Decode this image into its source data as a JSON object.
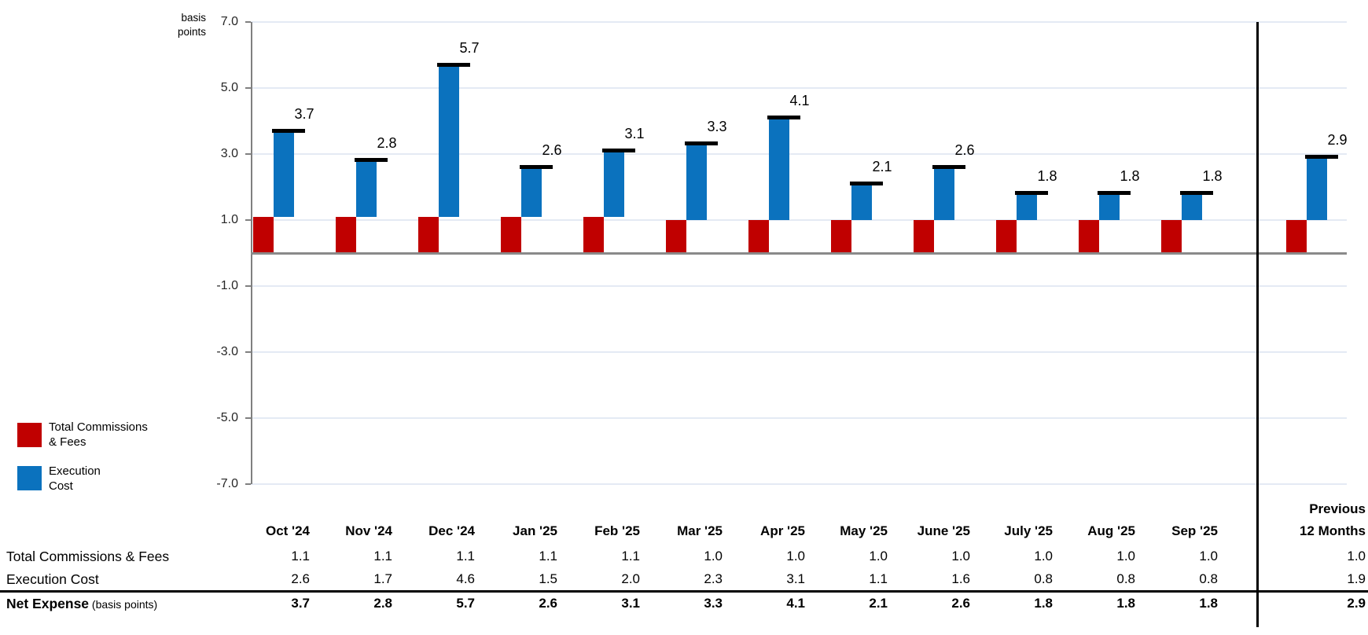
{
  "axis": {
    "unit_label_line1": "basis",
    "unit_label_line2": "points",
    "tick_labels": [
      "7.0",
      "5.0",
      "3.0",
      "1.0",
      "-1.0",
      "-3.0",
      "-5.0",
      "-7.0"
    ],
    "tick_values": [
      7,
      5,
      3,
      1,
      -1,
      -3,
      -5,
      -7
    ]
  },
  "legend": {
    "items": [
      {
        "label_line1": "Total Commissions",
        "label_line2": "& Fees",
        "color": "#c00000"
      },
      {
        "label_line1": "Execution",
        "label_line2": "Cost",
        "color": "#0b72be"
      }
    ]
  },
  "chart_data": {
    "type": "bar",
    "subtype": "stacked-columns-with-net-total-markers",
    "title": "",
    "ylabel": "basis points",
    "xlabel": "",
    "ylim": [
      -7.0,
      7.0
    ],
    "ytick_interval": 2.0,
    "grid": true,
    "legend_position": "left",
    "categories": [
      "Oct '24",
      "Nov '24",
      "Dec '24",
      "Jan '25",
      "Feb '25",
      "Mar '25",
      "Apr '25",
      "May '25",
      "June '25",
      "July '25",
      "Aug '25",
      "Sep '25",
      "Previous 12 Months"
    ],
    "series": [
      {
        "name": "Total Commissions & Fees",
        "color": "#c00000",
        "values": [
          1.1,
          1.1,
          1.1,
          1.1,
          1.1,
          1.0,
          1.0,
          1.0,
          1.0,
          1.0,
          1.0,
          1.0,
          1.0
        ]
      },
      {
        "name": "Execution Cost",
        "color": "#0b72be",
        "values": [
          2.6,
          1.7,
          4.6,
          1.5,
          2.0,
          2.3,
          3.1,
          1.1,
          1.6,
          0.8,
          0.8,
          0.8,
          1.9
        ]
      }
    ],
    "net_markers": {
      "name": "Net Expense",
      "values": [
        3.7,
        2.8,
        5.7,
        2.6,
        3.1,
        3.3,
        4.1,
        2.1,
        2.6,
        1.8,
        1.8,
        1.8,
        2.9
      ]
    },
    "bar_labels": [
      "3.7",
      "2.8",
      "5.7",
      "2.6",
      "3.1",
      "3.3",
      "4.1",
      "2.1",
      "2.6",
      "1.8",
      "1.8",
      "1.8",
      "2.9"
    ]
  },
  "table": {
    "month_headers": [
      "Oct '24",
      "Nov '24",
      "Dec '24",
      "Jan '25",
      "Feb '25",
      "Mar '25",
      "Apr '25",
      "May '25",
      "June '25",
      "July '25",
      "Aug '25",
      "Sep '25"
    ],
    "last_column_header_line1": "Previous",
    "last_column_header_line2": "12 Months",
    "rows": [
      {
        "label": "Total Commissions & Fees",
        "label_suffix": "",
        "bold": false,
        "values": [
          "1.1",
          "1.1",
          "1.1",
          "1.1",
          "1.1",
          "1.0",
          "1.0",
          "1.0",
          "1.0",
          "1.0",
          "1.0",
          "1.0",
          "1.0"
        ]
      },
      {
        "label": "Execution Cost",
        "label_suffix": "",
        "bold": false,
        "values": [
          "2.6",
          "1.7",
          "4.6",
          "1.5",
          "2.0",
          "2.3",
          "3.1",
          "1.1",
          "1.6",
          "0.8",
          "0.8",
          "0.8",
          "1.9"
        ]
      },
      {
        "label": "Net Expense",
        "label_suffix": " (basis points)",
        "bold": true,
        "values": [
          "3.7",
          "2.8",
          "5.7",
          "2.6",
          "3.1",
          "3.3",
          "4.1",
          "2.1",
          "2.6",
          "1.8",
          "1.8",
          "1.8",
          "2.9"
        ]
      }
    ]
  }
}
